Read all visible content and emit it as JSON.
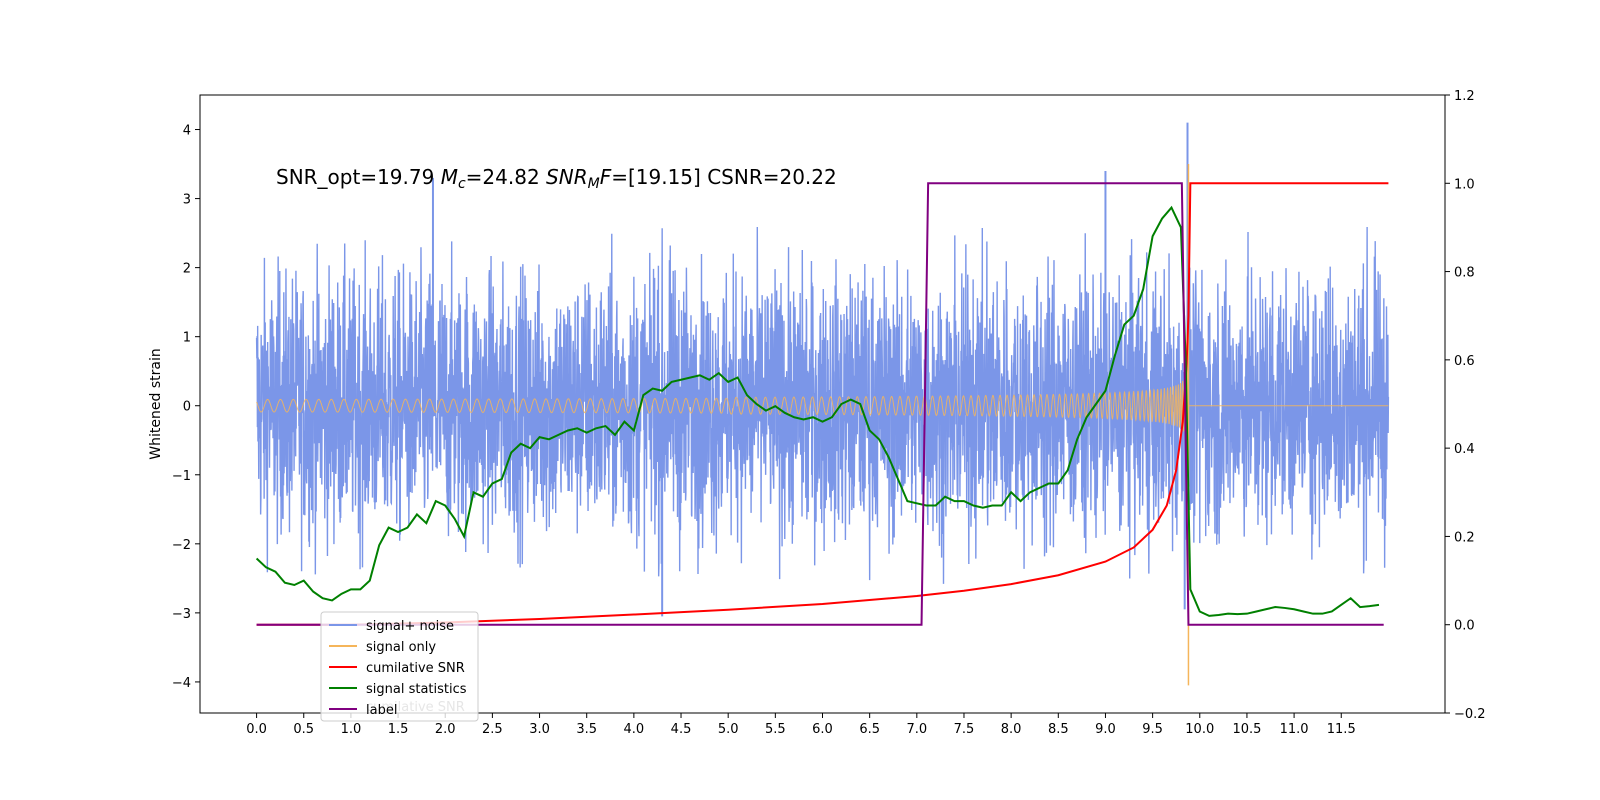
{
  "chart_data": {
    "type": "line",
    "annotation": "SNR_opt=19.79 $M_c$=24.82  $SNR_MF$=[19.15] CSNR=20.22",
    "ylabel": "Whitened strain",
    "xlim": [
      -0.6,
      12.6
    ],
    "ylim": [
      -4.45,
      4.5
    ],
    "y2lim": [
      -0.2,
      1.2
    ],
    "x_ticks": [
      "0.0",
      "0.5",
      "1.0",
      "1.5",
      "2.0",
      "2.5",
      "3.0",
      "3.5",
      "4.0",
      "4.5",
      "5.0",
      "5.5",
      "6.0",
      "6.5",
      "7.0",
      "7.5",
      "8.0",
      "8.5",
      "9.0",
      "9.5",
      "10.0",
      "10.5",
      "11.0",
      "11.5"
    ],
    "y_ticks": [
      "−4",
      "−3",
      "−2",
      "−1",
      "0",
      "1",
      "2",
      "3",
      "4"
    ],
    "y2_ticks": [
      "−0.2",
      "0.0",
      "0.2",
      "0.4",
      "0.6",
      "0.8",
      "1.0",
      "1.2"
    ],
    "legend": {
      "position": "lower-left",
      "entries": [
        "signal+ noise",
        "signal only",
        "cumilative SNR",
        "signal statistics",
        "label"
      ],
      "ghost_text": "cumilative SNR"
    },
    "colors": {
      "noise": "#7b96e8",
      "signal": "#f5b55a",
      "cumsnr": "#ff0000",
      "stat": "#008000",
      "label": "#800080"
    },
    "series": [
      {
        "name": "signal+ noise",
        "axis": "left",
        "x_range": [
          0.0,
          12.0
        ],
        "approx_envelope": [
          -1.9,
          1.9
        ],
        "max_spikes": [
          [
            1.87,
            3.3
          ],
          [
            9.0,
            3.4
          ],
          [
            9.87,
            4.1
          ],
          [
            4.3,
            -3.05
          ],
          [
            9.84,
            -2.95
          ]
        ]
      },
      {
        "name": "signal only",
        "axis": "left",
        "x_range": [
          0.0,
          12.0
        ],
        "merger_time": 9.88,
        "peak_amplitude": 3.5,
        "min_amplitude": -4.05
      },
      {
        "name": "cumilative SNR",
        "axis": "right",
        "x": [
          0.0,
          1.0,
          2.0,
          3.0,
          4.0,
          5.0,
          6.0,
          7.0,
          7.5,
          8.0,
          8.5,
          9.0,
          9.3,
          9.5,
          9.65,
          9.75,
          9.82,
          9.86,
          9.88,
          9.9,
          12.0
        ],
        "values": [
          0.0,
          0.0,
          0.005,
          0.013,
          0.023,
          0.034,
          0.047,
          0.065,
          0.077,
          0.092,
          0.112,
          0.143,
          0.175,
          0.215,
          0.27,
          0.35,
          0.46,
          0.59,
          0.7,
          1.0,
          1.0
        ]
      },
      {
        "name": "signal statistics",
        "axis": "right",
        "x": [
          0.0,
          0.1,
          0.2,
          0.3,
          0.4,
          0.5,
          0.6,
          0.7,
          0.8,
          0.9,
          1.0,
          1.1,
          1.2,
          1.3,
          1.4,
          1.5,
          1.6,
          1.7,
          1.8,
          1.9,
          2.0,
          2.1,
          2.2,
          2.3,
          2.4,
          2.5,
          2.6,
          2.7,
          2.8,
          2.9,
          3.0,
          3.1,
          3.2,
          3.3,
          3.4,
          3.5,
          3.6,
          3.7,
          3.8,
          3.9,
          4.0,
          4.1,
          4.2,
          4.3,
          4.4,
          4.5,
          4.6,
          4.7,
          4.8,
          4.9,
          5.0,
          5.1,
          5.2,
          5.3,
          5.4,
          5.5,
          5.6,
          5.7,
          5.8,
          5.9,
          6.0,
          6.1,
          6.2,
          6.3,
          6.4,
          6.5,
          6.6,
          6.7,
          6.8,
          6.9,
          7.0,
          7.1,
          7.2,
          7.3,
          7.4,
          7.5,
          7.6,
          7.7,
          7.8,
          7.9,
          8.0,
          8.1,
          8.2,
          8.3,
          8.4,
          8.5,
          8.6,
          8.7,
          8.8,
          8.9,
          9.0,
          9.1,
          9.2,
          9.3,
          9.4,
          9.5,
          9.6,
          9.7,
          9.8,
          9.85,
          9.9,
          10.0,
          10.1,
          10.2,
          10.3,
          10.4,
          10.5,
          10.6,
          10.7,
          10.8,
          10.9,
          11.0,
          11.1,
          11.2,
          11.3,
          11.4,
          11.5,
          11.6,
          11.7,
          11.8,
          11.9
        ],
        "values": [
          0.15,
          0.13,
          0.12,
          0.095,
          0.09,
          0.1,
          0.075,
          0.06,
          0.055,
          0.07,
          0.08,
          0.08,
          0.1,
          0.18,
          0.22,
          0.21,
          0.22,
          0.25,
          0.23,
          0.28,
          0.27,
          0.24,
          0.2,
          0.3,
          0.29,
          0.32,
          0.33,
          0.39,
          0.41,
          0.4,
          0.425,
          0.42,
          0.43,
          0.44,
          0.445,
          0.435,
          0.445,
          0.45,
          0.43,
          0.46,
          0.44,
          0.52,
          0.535,
          0.53,
          0.55,
          0.555,
          0.56,
          0.565,
          0.555,
          0.57,
          0.55,
          0.56,
          0.52,
          0.5,
          0.485,
          0.495,
          0.48,
          0.47,
          0.465,
          0.47,
          0.46,
          0.47,
          0.5,
          0.51,
          0.5,
          0.44,
          0.42,
          0.38,
          0.33,
          0.28,
          0.275,
          0.27,
          0.27,
          0.29,
          0.28,
          0.28,
          0.27,
          0.265,
          0.27,
          0.27,
          0.3,
          0.28,
          0.3,
          0.31,
          0.32,
          0.32,
          0.35,
          0.42,
          0.47,
          0.5,
          0.53,
          0.61,
          0.68,
          0.7,
          0.76,
          0.88,
          0.92,
          0.945,
          0.9,
          0.6,
          0.08,
          0.03,
          0.02,
          0.022,
          0.025,
          0.024,
          0.025,
          0.03,
          0.035,
          0.04,
          0.038,
          0.035,
          0.03,
          0.025,
          0.025,
          0.03,
          0.045,
          0.06,
          0.04,
          0.042,
          0.045
        ]
      },
      {
        "name": "label",
        "axis": "right",
        "x": [
          0.0,
          7.05,
          7.12,
          9.81,
          9.88,
          11.95
        ],
        "values": [
          0.0,
          0.0,
          1.0,
          1.0,
          0.0,
          0.0
        ]
      }
    ]
  }
}
